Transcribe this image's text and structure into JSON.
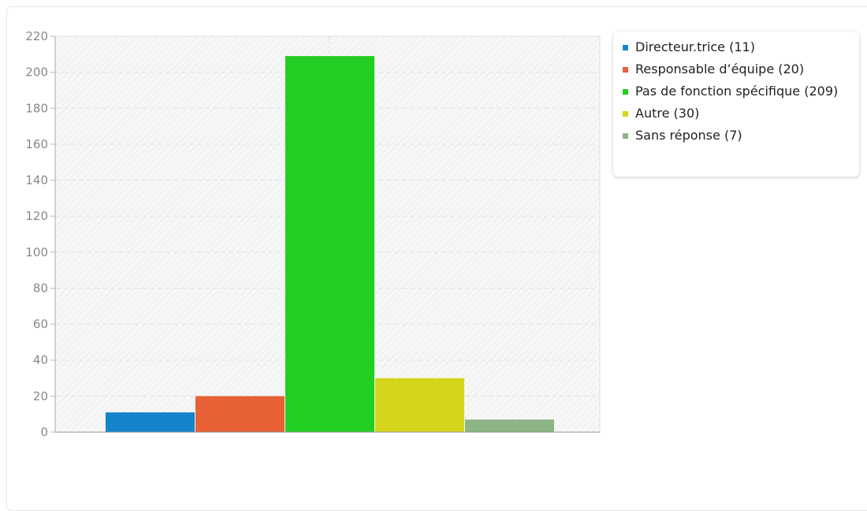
{
  "chart_data": {
    "type": "bar",
    "title": "",
    "xlabel": "",
    "ylabel": "",
    "ylim": [
      0,
      220
    ],
    "yticks": [
      0,
      20,
      40,
      60,
      80,
      100,
      120,
      140,
      160,
      180,
      200,
      220
    ],
    "grid": true,
    "legend_position": "top-right",
    "series": [
      {
        "name": "Directeur.trice (11)",
        "value": 11,
        "color": "#1485cc"
      },
      {
        "name": "Responsable d’équipe (20)",
        "value": 20,
        "color": "#e86035"
      },
      {
        "name": "Pas de fonction spécifique (209)",
        "value": 209,
        "color": "#22ce22"
      },
      {
        "name": "Autre (30)",
        "value": 30,
        "color": "#d5d51c"
      },
      {
        "name": "Sans réponse (7)",
        "value": 7,
        "color": "#8cb485"
      }
    ]
  }
}
